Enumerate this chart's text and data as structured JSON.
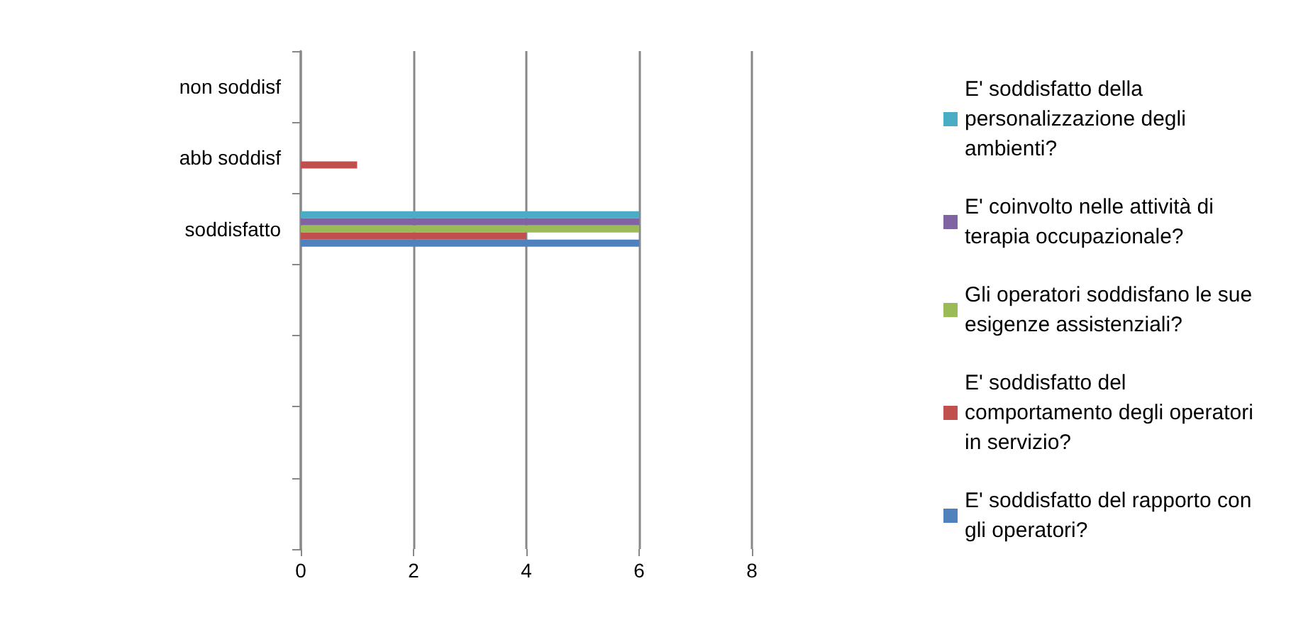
{
  "chart_data": {
    "type": "bar",
    "orientation": "horizontal",
    "categories": [
      "non soddisf",
      "abb soddisf",
      "soddisfatto",
      null,
      null,
      null,
      null
    ],
    "series": [
      {
        "name": "E' soddisfatto della personalizzazione degli ambienti?",
        "color": "#4bacc6",
        "values": [
          0,
          0,
          6,
          null,
          null,
          null,
          null
        ]
      },
      {
        "name": "E' coinvolto nelle attività di terapia occupazionale?",
        "color": "#8064a2",
        "values": [
          0,
          0,
          6,
          null,
          null,
          null,
          null
        ]
      },
      {
        "name": "Gli operatori soddisfano le sue esigenze assistenziali?",
        "color": "#9bbb59",
        "values": [
          0,
          0,
          6,
          null,
          null,
          null,
          null
        ]
      },
      {
        "name": "E' soddisfatto del comportamento degli operatori in servizio?",
        "color": "#c0504d",
        "values": [
          0,
          1,
          4,
          null,
          null,
          null,
          null
        ]
      },
      {
        "name": "E' soddisfatto del rapporto con gli operatori?",
        "color": "#4f81bd",
        "values": [
          0,
          0,
          6,
          null,
          null,
          null,
          null
        ]
      }
    ],
    "xlim": [
      0,
      8
    ],
    "xticks": [
      0,
      2,
      4,
      6,
      8
    ],
    "grid": "x",
    "legend": "right"
  }
}
